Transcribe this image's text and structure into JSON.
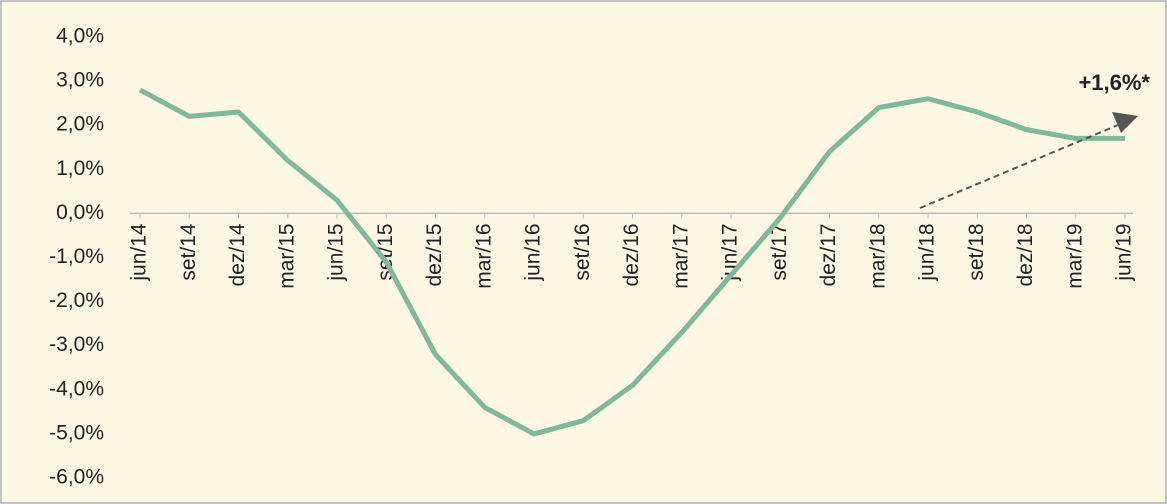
{
  "chart_data": {
    "type": "line",
    "categories": [
      "jun/14",
      "set/14",
      "dez/14",
      "mar/15",
      "jun/15",
      "set/15",
      "dez/15",
      "mar/16",
      "jun/16",
      "set/16",
      "dez/16",
      "mar/17",
      "jun/17",
      "set/17",
      "dez/17",
      "mar/18",
      "jun/18",
      "set/18",
      "dez/18",
      "mar/19",
      "jun/19"
    ],
    "series": [
      {
        "color": "#7fb99a",
        "values": [
          2.8,
          2.2,
          2.3,
          1.2,
          0.3,
          -1.1,
          -3.2,
          -4.4,
          -5.0,
          -4.7,
          -3.9,
          -2.7,
          -1.4,
          -0.1,
          1.4,
          2.4,
          2.6,
          2.3,
          1.9,
          1.7,
          1.7
        ]
      }
    ],
    "ylim": [
      -6,
      4
    ],
    "yticks": [
      {
        "value": 4,
        "label": "4,0%"
      },
      {
        "value": 3,
        "label": "3,0%"
      },
      {
        "value": 2,
        "label": "2,0%"
      },
      {
        "value": 1,
        "label": "1,0%"
      },
      {
        "value": 0,
        "label": "0,0%"
      },
      {
        "value": -1,
        "label": "-1,0%"
      },
      {
        "value": -2,
        "label": "-2,0%"
      },
      {
        "value": -3,
        "label": "-3,0%"
      },
      {
        "value": -4,
        "label": "-4,0%"
      },
      {
        "value": -5,
        "label": "-5,0%"
      },
      {
        "value": -6,
        "label": "-6,0%"
      }
    ],
    "annotation": "+1,6%*"
  }
}
